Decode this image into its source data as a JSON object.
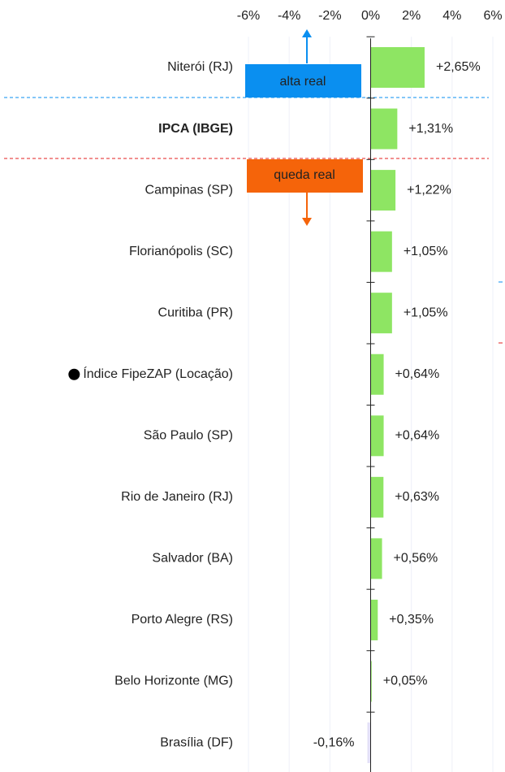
{
  "chart_data": {
    "type": "hbar",
    "categories": [
      "Niterói (RJ)",
      "IPCA (IBGE)",
      "Campinas (SP)",
      "Florianópolis (SC)",
      "Curitiba (PR)",
      "Índice FipeZAP (Locação)",
      "São Paulo (SP)",
      "Rio de Janeiro (RJ)",
      "Salvador (BA)",
      "Porto Alegre (RS)",
      "Belo Horizonte (MG)",
      "Brasília (DF)"
    ],
    "values": [
      2.65,
      1.31,
      1.22,
      1.05,
      1.05,
      0.64,
      0.64,
      0.63,
      0.56,
      0.35,
      0.05,
      -0.16
    ],
    "value_labels": [
      "+2,65%",
      "+1,31%",
      "+1,22%",
      "+1,05%",
      "+1,05%",
      "+0,64%",
      "+0,64%",
      "+0,63%",
      "+0,56%",
      "+0,35%",
      "+0,05%",
      "-0,16%"
    ],
    "color": "#8ee563",
    "negative_color": "#e3e0f7",
    "bold_categories": [
      1
    ],
    "marked_categories": [
      5
    ],
    "xlim": [
      -6,
      6
    ],
    "xticks": [
      {
        "value": -6,
        "label": "-6%"
      },
      {
        "value": -4,
        "label": "-4%"
      },
      {
        "value": -2,
        "label": "-2%"
      },
      {
        "value": 0,
        "label": "0%"
      },
      {
        "value": 2,
        "label": "2%"
      },
      {
        "value": 4,
        "label": "4%"
      },
      {
        "value": 6,
        "label": "6%"
      }
    ],
    "grid": true,
    "annotations": [
      {
        "text": "alta real",
        "color": "#0a8ff0"
      },
      {
        "text": "queda real",
        "color": "#f5640a"
      }
    ]
  }
}
